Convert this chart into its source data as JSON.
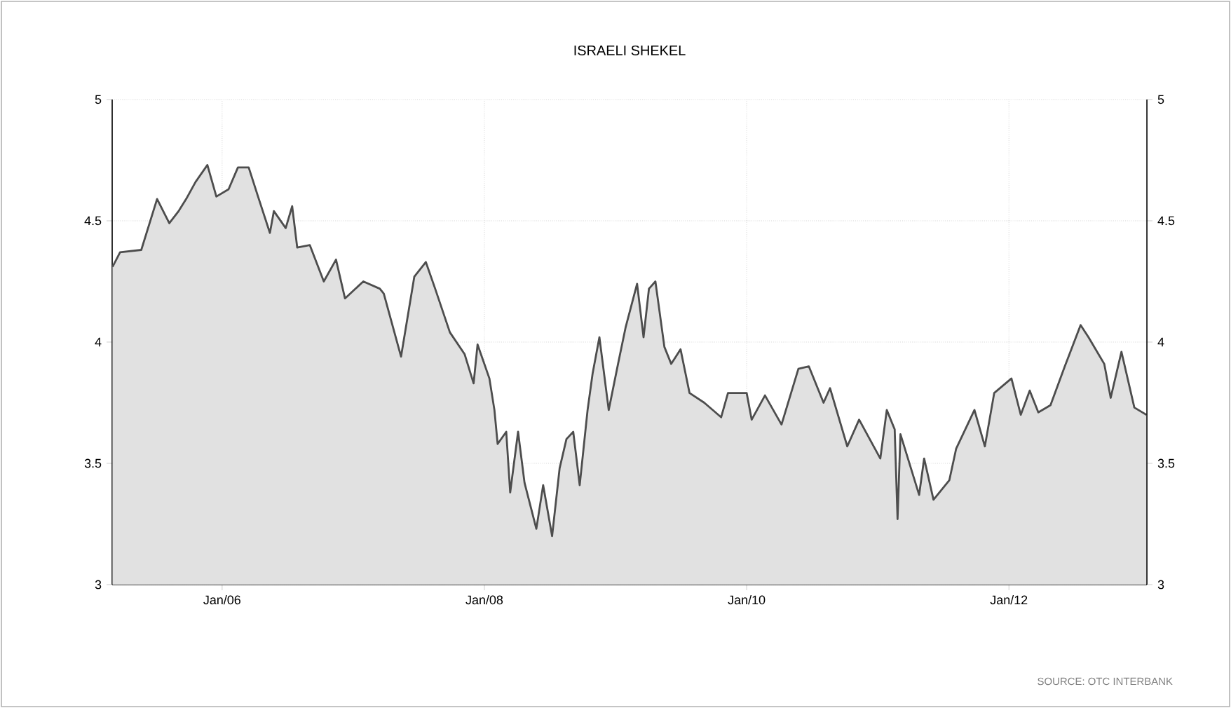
{
  "chart_data": {
    "type": "area",
    "title": "ISRAELI SHEKEL",
    "x": [
      "2005-03-02",
      "2005-03-23",
      "2005-05-21",
      "2005-07-04",
      "2005-08-07",
      "2005-09-02",
      "2005-09-23",
      "2005-10-19",
      "2005-11-21",
      "2005-12-16",
      "2006-01-19",
      "2006-02-14",
      "2006-03-16",
      "2006-04-11",
      "2006-05-14",
      "2006-05-25",
      "2006-06-27",
      "2006-07-15",
      "2006-07-29",
      "2006-09-02",
      "2006-10-11",
      "2006-11-14",
      "2006-12-09",
      "2007-01-29",
      "2007-03-16",
      "2007-03-27",
      "2007-05-14",
      "2007-06-20",
      "2007-07-22",
      "2007-08-17",
      "2007-09-27",
      "2007-11-07",
      "2007-12-02",
      "2007-12-13",
      "2008-01-15",
      "2008-01-29",
      "2008-02-07",
      "2008-03-02",
      "2008-03-13",
      "2008-04-04",
      "2008-04-22",
      "2008-05-25",
      "2008-06-13",
      "2008-07-08",
      "2008-07-29",
      "2008-08-17",
      "2008-09-05",
      "2008-09-23",
      "2008-10-15",
      "2008-10-29",
      "2008-11-17",
      "2008-12-13",
      "2009-01-08",
      "2009-01-29",
      "2009-03-02",
      "2009-03-20",
      "2009-04-04",
      "2009-04-22",
      "2009-05-17",
      "2009-06-05",
      "2009-07-01",
      "2009-07-26",
      "2009-09-05",
      "2009-10-22",
      "2009-11-10",
      "2010-01-01",
      "2010-01-15",
      "2010-02-21",
      "2010-04-08",
      "2010-05-25",
      "2010-06-23",
      "2010-08-03",
      "2010-08-21",
      "2010-10-08",
      "2010-11-10",
      "2011-01-08",
      "2011-01-26",
      "2011-02-17",
      "2011-02-25",
      "2011-03-05",
      "2011-04-26",
      "2011-05-10",
      "2011-06-05",
      "2011-07-19",
      "2011-08-07",
      "2011-09-27",
      "2011-10-26",
      "2011-11-21",
      "2012-01-08",
      "2012-02-03",
      "2012-02-28",
      "2012-03-23",
      "2012-04-26",
      "2012-06-05",
      "2012-07-19",
      "2012-08-10",
      "2012-09-23",
      "2012-10-11",
      "2012-11-10",
      "2012-12-16",
      "2013-01-19"
    ],
    "series": [
      {
        "color": "#4d4d4d",
        "values": [
          4.31,
          4.37,
          4.38,
          4.59,
          4.49,
          4.54,
          4.59,
          4.66,
          4.73,
          4.6,
          4.63,
          4.72,
          4.72,
          4.6,
          4.45,
          4.54,
          4.47,
          4.56,
          4.39,
          4.4,
          4.25,
          4.34,
          4.18,
          4.25,
          4.22,
          4.2,
          3.94,
          4.27,
          4.33,
          4.22,
          4.04,
          3.95,
          3.83,
          3.99,
          3.85,
          3.72,
          3.58,
          3.63,
          3.38,
          3.63,
          3.42,
          3.23,
          3.41,
          3.2,
          3.48,
          3.6,
          3.63,
          3.41,
          3.72,
          3.87,
          4.02,
          3.72,
          3.91,
          4.06,
          4.24,
          4.02,
          4.22,
          4.25,
          3.98,
          3.91,
          3.97,
          3.79,
          3.75,
          3.69,
          3.79,
          3.79,
          3.68,
          3.78,
          3.66,
          3.89,
          3.9,
          3.75,
          3.81,
          3.57,
          3.68,
          3.52,
          3.72,
          3.64,
          3.27,
          3.62,
          3.37,
          3.52,
          3.35,
          3.43,
          3.56,
          3.72,
          3.57,
          3.79,
          3.85,
          3.7,
          3.8,
          3.71,
          3.74,
          3.9,
          4.07,
          4.02,
          3.91,
          3.77,
          3.96,
          3.73,
          3.7
        ]
      }
    ],
    "xlim": [
      "2005-03-01",
      "2013-01-20"
    ],
    "xticks": [
      {
        "value": "2006-01-01",
        "label": "Jan/06"
      },
      {
        "value": "2008-01-01",
        "label": "Jan/08"
      },
      {
        "value": "2010-01-01",
        "label": "Jan/10"
      },
      {
        "value": "2012-01-01",
        "label": "Jan/12"
      }
    ],
    "ylim": [
      3,
      5
    ],
    "yticks": [
      3,
      3.5,
      4,
      4.5,
      5
    ],
    "y2lim": [
      3,
      5
    ],
    "y2ticks": [
      3,
      3.5,
      4,
      4.5,
      5
    ],
    "grid": true,
    "annotations": [
      "SOURCE: OTC INTERBANK"
    ]
  }
}
